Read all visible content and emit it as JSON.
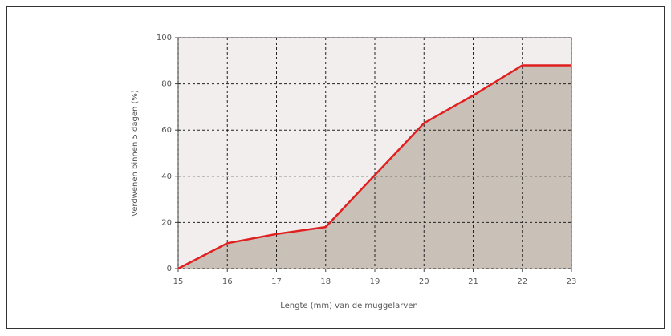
{
  "chart_data": {
    "type": "area",
    "x_label": "Lengte (mm) van de muggelarven",
    "y_label": "Verdwenen binnen 5 dagen (%)",
    "x": [
      15,
      16,
      17,
      18,
      20,
      21,
      22,
      23
    ],
    "values": [
      0,
      11,
      15,
      18,
      63,
      75,
      88,
      88
    ],
    "color": "#e02020",
    "fill": "#c9c1b8",
    "xlim": [
      15,
      23
    ],
    "xticks": [
      15,
      16,
      17,
      18,
      19,
      20,
      21,
      22,
      23
    ],
    "ylim": [
      0,
      100
    ],
    "yticks": [
      0,
      20,
      40,
      60,
      80,
      100
    ],
    "grid": true
  }
}
